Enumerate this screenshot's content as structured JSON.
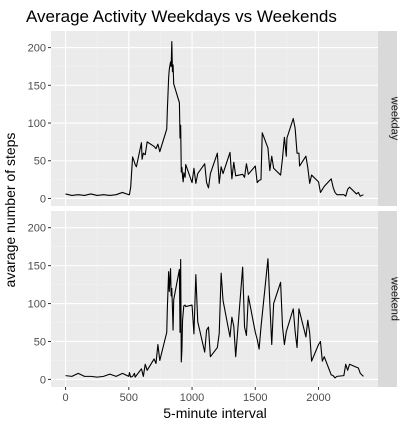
{
  "chart_data": {
    "type": "line",
    "title": "Average Activity Weekdays vs Weekends",
    "xlabel": "5-minute interval",
    "ylabel": "avarage number of steps",
    "xlim": [
      -115,
      2470
    ],
    "ylim": [
      -10,
      222
    ],
    "x_ticks": [
      0,
      500,
      1000,
      1500,
      2000
    ],
    "x_tick_labels": [
      "0",
      "500",
      "1000",
      "1500",
      "2000"
    ],
    "y_ticks": [
      0,
      50,
      100,
      150,
      200
    ],
    "y_tick_labels": [
      "0",
      "50",
      "100",
      "150",
      "200"
    ],
    "grid": true,
    "panels": [
      {
        "label": "weekday",
        "x": [
          0,
          50,
          100,
          150,
          200,
          250,
          300,
          350,
          400,
          450,
          500,
          505,
          515,
          530,
          545,
          550,
          560,
          600,
          605,
          615,
          630,
          645,
          700,
          715,
          730,
          745,
          800,
          805,
          815,
          820,
          830,
          835,
          840,
          845,
          850,
          855,
          900,
          905,
          910,
          915,
          920,
          925,
          930,
          935,
          945,
          950,
          1000,
          1015,
          1030,
          1045,
          1100,
          1115,
          1130,
          1145,
          1200,
          1215,
          1230,
          1245,
          1300,
          1315,
          1330,
          1345,
          1400,
          1415,
          1430,
          1445,
          1500,
          1515,
          1530,
          1545,
          1555,
          1600,
          1615,
          1630,
          1645,
          1700,
          1715,
          1730,
          1745,
          1750,
          1800,
          1815,
          1830,
          1845,
          1850,
          1900,
          1915,
          1930,
          1945,
          2000,
          2015,
          2030,
          2045,
          2100,
          2115,
          2130,
          2145,
          2200,
          2215,
          2230,
          2245,
          2300,
          2315,
          2330,
          2355
        ],
        "y": [
          6,
          4,
          5,
          4,
          6,
          4,
          5,
          4,
          5,
          8,
          5,
          5,
          15,
          55,
          48,
          45,
          42,
          74,
          52,
          60,
          58,
          75,
          69,
          66,
          72,
          62,
          92,
          118,
          160,
          171,
          181,
          175,
          208,
          168,
          177,
          152,
          127,
          80,
          97,
          35,
          41,
          29,
          22,
          34,
          28,
          45,
          21,
          40,
          20,
          33,
          46,
          21,
          14,
          33,
          60,
          20,
          42,
          33,
          61,
          26,
          48,
          30,
          32,
          28,
          46,
          32,
          43,
          21,
          24,
          25,
          87,
          67,
          37,
          56,
          40,
          31,
          53,
          81,
          56,
          80,
          106,
          93,
          60,
          60,
          43,
          56,
          41,
          20,
          31,
          22,
          8,
          12,
          16,
          26,
          15,
          8,
          5,
          5,
          3,
          12,
          15,
          6,
          8,
          3,
          5
        ]
      },
      {
        "label": "weekend",
        "x": [
          0,
          50,
          100,
          150,
          200,
          250,
          300,
          350,
          400,
          450,
          500,
          505,
          515,
          530,
          545,
          550,
          600,
          615,
          630,
          645,
          700,
          715,
          730,
          745,
          800,
          805,
          815,
          820,
          830,
          835,
          840,
          845,
          850,
          855,
          900,
          905,
          910,
          915,
          920,
          925,
          930,
          935,
          945,
          950,
          1000,
          1015,
          1030,
          1045,
          1100,
          1115,
          1130,
          1145,
          1200,
          1215,
          1230,
          1245,
          1300,
          1315,
          1330,
          1345,
          1400,
          1415,
          1430,
          1445,
          1500,
          1515,
          1530,
          1545,
          1600,
          1615,
          1630,
          1645,
          1700,
          1715,
          1730,
          1745,
          1800,
          1815,
          1830,
          1845,
          1900,
          1915,
          1930,
          1945,
          2000,
          2015,
          2030,
          2045,
          2100,
          2115,
          2130,
          2145,
          2200,
          2215,
          2230,
          2245,
          2300,
          2315,
          2330,
          2355
        ],
        "y": [
          5,
          4,
          8,
          4,
          4,
          3,
          4,
          7,
          4,
          8,
          4,
          9,
          3,
          4,
          8,
          3,
          14,
          4,
          20,
          12,
          27,
          21,
          46,
          25,
          62,
          95,
          142,
          116,
          146,
          110,
          120,
          94,
          65,
          105,
          145,
          62,
          158,
          23,
          39,
          78,
          88,
          97,
          98,
          96,
          98,
          60,
          138,
          76,
          36,
          65,
          69,
          30,
          42,
          61,
          140,
          104,
          56,
          82,
          70,
          30,
          148,
          69,
          58,
          110,
          62,
          53,
          40,
          69,
          159,
          100,
          46,
          100,
          128,
          70,
          46,
          63,
          93,
          63,
          42,
          93,
          56,
          78,
          61,
          24,
          46,
          50,
          24,
          30,
          6,
          5,
          2,
          4,
          5,
          20,
          12,
          20,
          16,
          15,
          8,
          4
        ]
      }
    ],
    "colors": {
      "panel_background": "#ebebeb",
      "grid_major": "#ffffff",
      "grid_minor": "#f2f2f2",
      "strip_background": "#d9d9d9",
      "line": "#000000",
      "tick_mark": "#333333"
    }
  }
}
